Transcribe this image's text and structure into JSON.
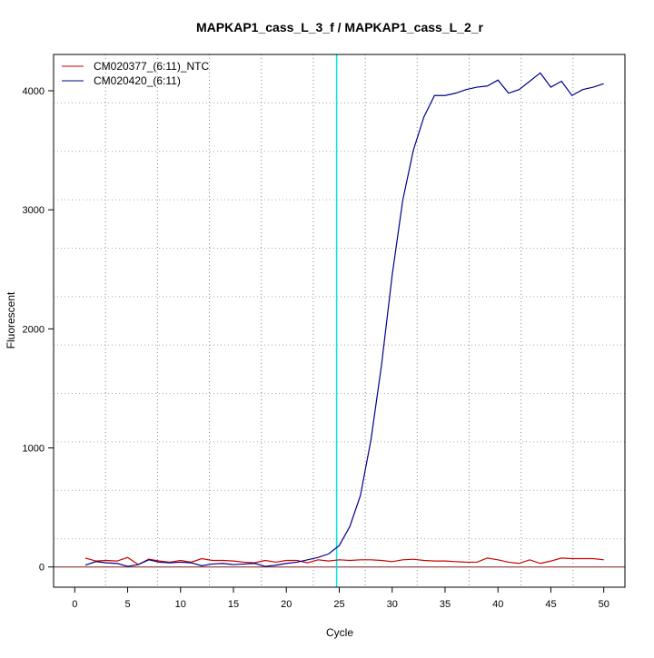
{
  "chart_data": {
    "type": "line",
    "title": "MAPKAP1_cass_L_3_f / MAPKAP1_cass_L_2_r",
    "xlabel": "Cycle",
    "ylabel": "Fluorescent",
    "xlim": [
      -2,
      52
    ],
    "ylim": [
      -170,
      4305
    ],
    "xticks": [
      0,
      5,
      10,
      15,
      20,
      25,
      30,
      35,
      40,
      45,
      50
    ],
    "yticks": [
      0,
      1000,
      2000,
      3000,
      4000
    ],
    "grid": true,
    "legend_position": "top-left",
    "threshold_cycle": 24.75,
    "threshold_color": "#00e5e5",
    "baseline": 0,
    "x": [
      1,
      2,
      3,
      4,
      5,
      6,
      7,
      8,
      9,
      10,
      11,
      12,
      13,
      14,
      15,
      16,
      17,
      18,
      19,
      20,
      21,
      22,
      23,
      24,
      25,
      26,
      27,
      28,
      29,
      30,
      31,
      32,
      33,
      34,
      35,
      36,
      37,
      38,
      39,
      40,
      41,
      42,
      43,
      44,
      45,
      46,
      47,
      48,
      49,
      50
    ],
    "series": [
      {
        "name": "CM020377_(6:11)_NTC",
        "color": "#cc0000",
        "values": [
          75,
          50,
          55,
          50,
          80,
          20,
          65,
          50,
          40,
          55,
          40,
          70,
          55,
          55,
          50,
          40,
          35,
          55,
          40,
          55,
          55,
          35,
          60,
          50,
          60,
          55,
          60,
          60,
          55,
          45,
          60,
          65,
          55,
          50,
          50,
          45,
          40,
          40,
          75,
          60,
          40,
          30,
          60,
          30,
          50,
          75,
          70,
          70,
          70,
          60
        ]
      },
      {
        "name": "CM020420_(6:11)",
        "color": "#00008b",
        "values": [
          15,
          45,
          35,
          30,
          5,
          20,
          60,
          40,
          35,
          40,
          35,
          10,
          25,
          30,
          20,
          25,
          30,
          5,
          15,
          30,
          40,
          60,
          80,
          110,
          180,
          340,
          600,
          1070,
          1700,
          2450,
          3080,
          3500,
          3780,
          3960,
          3960,
          3980,
          4010,
          4030,
          4040,
          4090,
          3980,
          4010,
          4080,
          4150,
          4030,
          4080,
          3960,
          4010,
          4030,
          4060
        ]
      }
    ]
  }
}
